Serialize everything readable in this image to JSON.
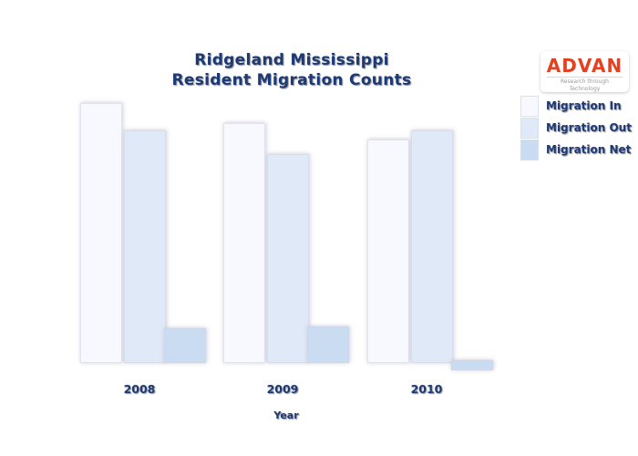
{
  "page": {
    "background": "#ffffff"
  },
  "header": {
    "title_line1": "Ridgeland Mississippi",
    "title_line2": "Resident Migration Counts",
    "title_color": "#1d3a73"
  },
  "logo": {
    "name": "ADVAN",
    "tagline": "Research through Technology",
    "name_color": "#e5401f",
    "tagline_color": "#999999",
    "background": "#ffffff"
  },
  "chart_data": {
    "type": "bar",
    "title": "Ridgeland Mississippi Resident Migration Counts",
    "xlabel": "Year",
    "ylabel": "",
    "categories": [
      "2008",
      "2009",
      "2010"
    ],
    "series": [
      {
        "name": "Migration In",
        "color": "#f7f9fe",
        "values": [
          2850,
          2630,
          2450
        ]
      },
      {
        "name": "Migration Out",
        "color": "#dfe9f8",
        "values": [
          2550,
          2290,
          2550
        ]
      },
      {
        "name": "Migration Net",
        "color": "#c9dcf1",
        "values": [
          380,
          400,
          -70
        ]
      }
    ],
    "ylim": [
      -200,
      3000
    ],
    "grid": false,
    "y_axis_shown": false,
    "legend_position": "upper right",
    "text_color": "#1d3a73"
  }
}
